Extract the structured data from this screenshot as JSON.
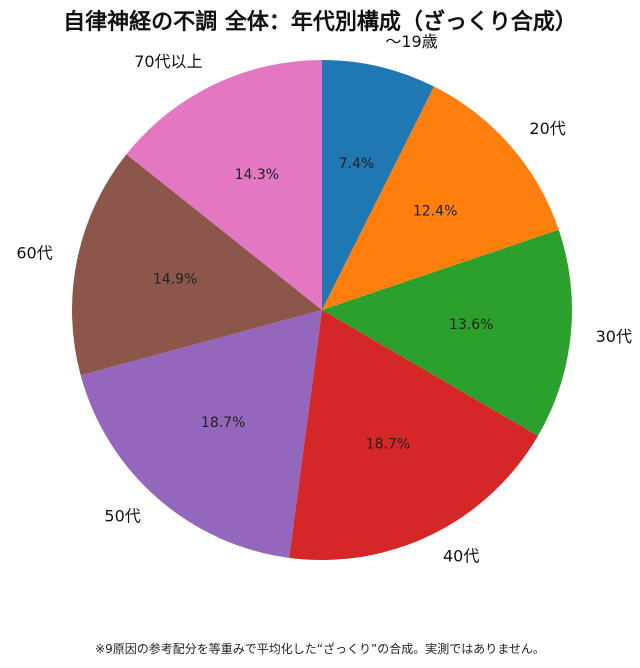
{
  "title": "自律神経の不調 全体：年代別構成（ざっくり合成）",
  "footnote": "※9原因の参考配分を等重みで平均化した“ざっくり”の合成。実測ではありません。",
  "chart_data": {
    "type": "pie",
    "title": "自律神経の不調 全体：年代別構成（ざっくり合成）",
    "start_angle_deg": 90,
    "direction": "clockwise",
    "slices": [
      {
        "label": "〜19歳",
        "value": 7.4,
        "pct_label": "7.4%",
        "color": "#1f77b4"
      },
      {
        "label": "20代",
        "value": 12.4,
        "pct_label": "12.4%",
        "color": "#ff7f0e"
      },
      {
        "label": "30代",
        "value": 13.6,
        "pct_label": "13.6%",
        "color": "#2ca02c"
      },
      {
        "label": "40代",
        "value": 18.7,
        "pct_label": "18.7%",
        "color": "#d62728"
      },
      {
        "label": "50代",
        "value": 18.7,
        "pct_label": "18.7%",
        "color": "#9467bd"
      },
      {
        "label": "60代",
        "value": 14.9,
        "pct_label": "14.9%",
        "color": "#8c564b"
      },
      {
        "label": "70代以上",
        "value": 14.3,
        "pct_label": "14.3%",
        "color": "#e377c2"
      }
    ]
  }
}
